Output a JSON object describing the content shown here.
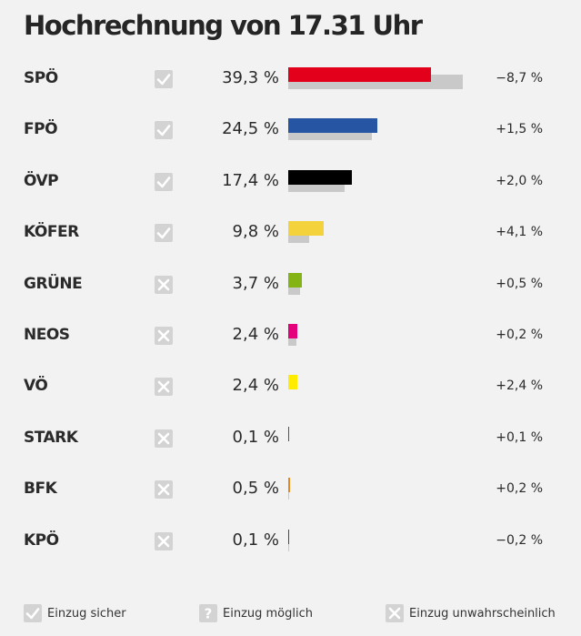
{
  "title": "Hochrechnung von 17.31 Uhr",
  "chart_data": {
    "type": "bar",
    "title": "Hochrechnung von 17.31 Uhr",
    "value_unit": "%",
    "scale_max": 50,
    "parties": [
      {
        "name": "SPÖ",
        "status": "sicher",
        "value": 39.3,
        "value_label": "39,3 %",
        "previous": 48.0,
        "diff_label": "−8,7 %",
        "color": "#e2001a"
      },
      {
        "name": "FPÖ",
        "status": "sicher",
        "value": 24.5,
        "value_label": "24,5 %",
        "previous": 23.0,
        "diff_label": "+1,5 %",
        "color": "#2655a3"
      },
      {
        "name": "ÖVP",
        "status": "sicher",
        "value": 17.4,
        "value_label": "17,4 %",
        "previous": 15.4,
        "diff_label": "+2,0 %",
        "color": "#000000"
      },
      {
        "name": "KÖFER",
        "status": "sicher",
        "value": 9.8,
        "value_label": "9,8 %",
        "previous": 5.7,
        "diff_label": "+4,1 %",
        "color": "#f4d23c"
      },
      {
        "name": "GRÜNE",
        "status": "unwahrscheinlich",
        "value": 3.7,
        "value_label": "3,7 %",
        "previous": 3.2,
        "diff_label": "+0,5 %",
        "color": "#84b414"
      },
      {
        "name": "NEOS",
        "status": "unwahrscheinlich",
        "value": 2.4,
        "value_label": "2,4 %",
        "previous": 2.2,
        "diff_label": "+0,2 %",
        "color": "#e3007a"
      },
      {
        "name": "VÖ",
        "status": "unwahrscheinlich",
        "value": 2.4,
        "value_label": "2,4 %",
        "previous": 0.0,
        "diff_label": "+2,4 %",
        "color": "#ffec00"
      },
      {
        "name": "STARK",
        "status": "unwahrscheinlich",
        "value": 0.1,
        "value_label": "0,1 %",
        "previous": 0.0,
        "diff_label": "+0,1 %",
        "color": "#555555"
      },
      {
        "name": "BFK",
        "status": "unwahrscheinlich",
        "value": 0.5,
        "value_label": "0,5 %",
        "previous": 0.3,
        "diff_label": "+0,2 %",
        "color": "#e58a1f"
      },
      {
        "name": "KPÖ",
        "status": "unwahrscheinlich",
        "value": 0.1,
        "value_label": "0,1 %",
        "previous": 0.3,
        "diff_label": "−0,2 %",
        "color": "#c8102e"
      }
    ],
    "previous_bar_color": "#c9c9c9"
  },
  "legend": {
    "sicher": {
      "label": "Einzug sicher",
      "icon": "check-icon"
    },
    "moeglich": {
      "label": "Einzug möglich",
      "icon": "question-icon"
    },
    "unwahrscheinlich": {
      "label": "Einzug unwahrscheinlich",
      "icon": "cross-icon"
    }
  }
}
